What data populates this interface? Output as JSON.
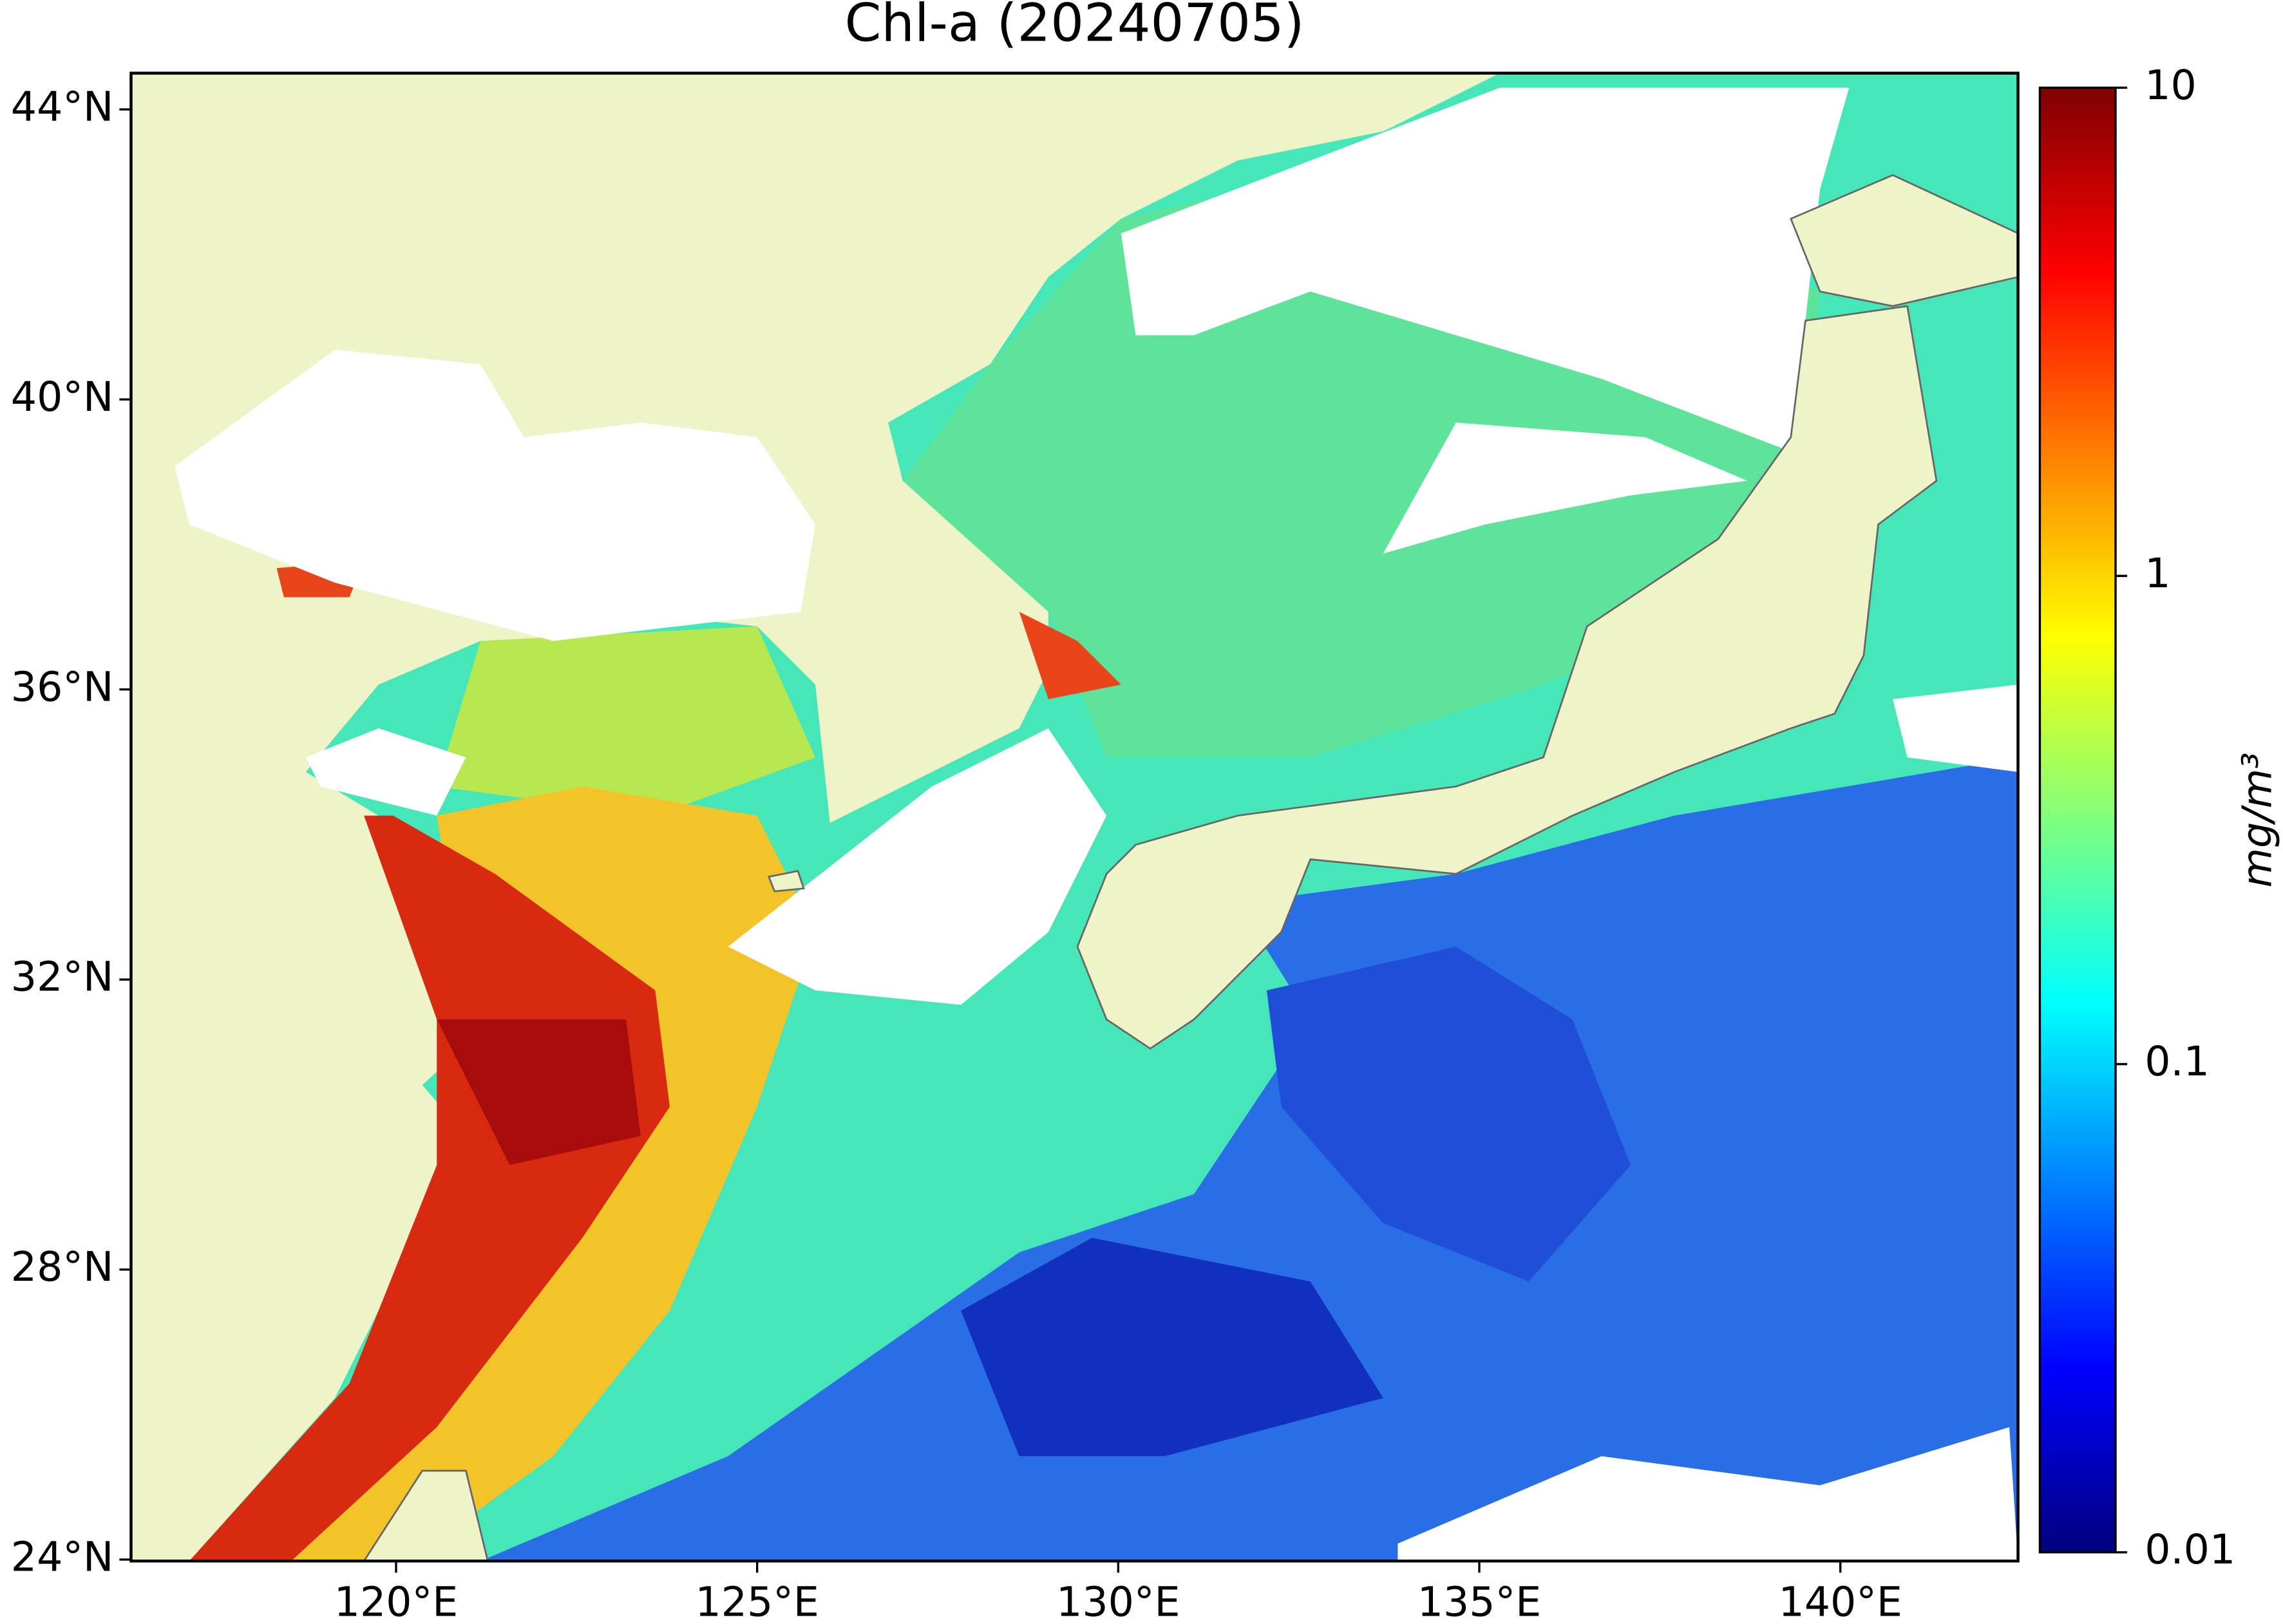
{
  "chart_data": {
    "type": "map",
    "title": "Chl-a (20240705)",
    "xlim": [
      116.33,
      142.46
    ],
    "ylim": [
      23.98,
      44.5
    ],
    "xticks": [
      {
        "value": 120,
        "label": "120°E"
      },
      {
        "value": 125,
        "label": "125°E"
      },
      {
        "value": 130,
        "label": "130°E"
      },
      {
        "value": 135,
        "label": "135°E"
      },
      {
        "value": 140,
        "label": "140°E"
      }
    ],
    "yticks": [
      {
        "value": 24,
        "label": "24°N"
      },
      {
        "value": 28,
        "label": "28°N"
      },
      {
        "value": 32,
        "label": "32°N"
      },
      {
        "value": 36,
        "label": "36°N"
      },
      {
        "value": 40,
        "label": "40°N"
      },
      {
        "value": 44,
        "label": "44°N"
      }
    ],
    "colorbar": {
      "scale": "log",
      "ylim": [
        0.01,
        10
      ],
      "yticks": [
        0.01,
        0.1,
        1,
        10
      ],
      "label": "mg/m³",
      "colormap": [
        "#00007f",
        "#0000ff",
        "#007fff",
        "#00ffff",
        "#7fff7f",
        "#ffff00",
        "#ff7f00",
        "#ff0000",
        "#7f0000"
      ]
    }
  }
}
